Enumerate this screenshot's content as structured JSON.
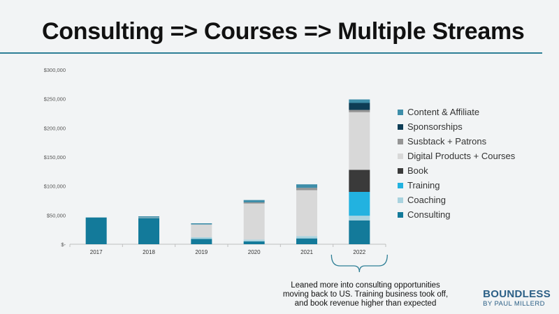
{
  "title": "Consulting => Courses => Multiple Streams",
  "chart_data": {
    "type": "bar",
    "stacked": true,
    "categories": [
      "2017",
      "2018",
      "2019",
      "2020",
      "2021",
      "2022"
    ],
    "ylim": [
      0,
      300000
    ],
    "yticks": [
      {
        "value": 0,
        "label": "$-"
      },
      {
        "value": 50000,
        "label": "$50,000"
      },
      {
        "value": 100000,
        "label": "$100,000"
      },
      {
        "value": 150000,
        "label": "$150,000"
      },
      {
        "value": 200000,
        "label": "$200,000"
      },
      {
        "value": 250000,
        "label": "$250,000"
      },
      {
        "value": 300000,
        "label": "$300,000"
      }
    ],
    "legend_position": "right",
    "grid": false,
    "series": [
      {
        "name": "Consulting",
        "color": "#137a9a",
        "values": [
          46000,
          45000,
          9000,
          5000,
          10000,
          41000
        ]
      },
      {
        "name": "Coaching",
        "color": "#a9d3df",
        "values": [
          0,
          0,
          3000,
          3000,
          4000,
          8000
        ]
      },
      {
        "name": "Training",
        "color": "#22b2e0",
        "values": [
          0,
          0,
          0,
          0,
          0,
          41000
        ]
      },
      {
        "name": "Book",
        "color": "#3a3a3a",
        "values": [
          0,
          0,
          0,
          0,
          0,
          38000
        ]
      },
      {
        "name": "Digital Products + Courses",
        "color": "#d8d8d8",
        "values": [
          0,
          1000,
          22000,
          62000,
          79000,
          99000
        ]
      },
      {
        "name": "Susbtack + Patrons",
        "color": "#959595",
        "values": [
          0,
          0,
          0,
          2000,
          4000,
          4000
        ]
      },
      {
        "name": "Sponsorships",
        "color": "#0e3d56",
        "values": [
          0,
          0,
          0,
          0,
          0,
          12000
        ]
      },
      {
        "name": "Content & Affiliate",
        "color": "#3e8ea9",
        "values": [
          0,
          2000,
          2000,
          4000,
          6000,
          6000
        ]
      }
    ]
  },
  "annotation": "Leaned more into consulting opportunities\nmoving back to US.  Training business took off,\nand book revenue higher than expected",
  "brand": {
    "name": "BOUNDLESS",
    "tagline": "BY PAUL MILLERD"
  }
}
